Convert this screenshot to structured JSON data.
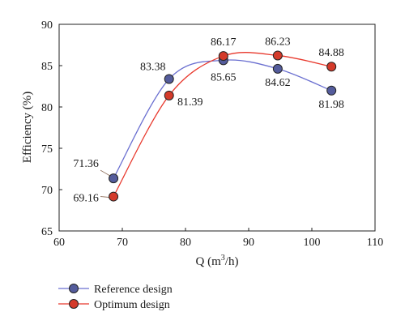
{
  "colors": {
    "reference": "#6a6fd0",
    "reference_marker": "#545c9c",
    "optimum": "#e8382c",
    "optimum_marker": "#d43a2a",
    "axis": "#222222",
    "leader": "#8a6a55"
  },
  "chart_data": {
    "type": "line",
    "title": "",
    "xlabel_main": "Q (m",
    "xlabel_sup": "3",
    "xlabel_tail": "/h)",
    "ylabel": "Efficiency (%)",
    "xlim": [
      60,
      110
    ],
    "ylim": [
      65,
      90
    ],
    "xticks": [
      60,
      70,
      80,
      90,
      100,
      110
    ],
    "yticks": [
      65,
      70,
      75,
      80,
      85,
      90
    ],
    "legend_position": "bottom-left",
    "series": [
      {
        "name": "Reference design",
        "x": [
          68.6,
          77.4,
          86.0,
          94.6,
          103.1
        ],
        "values": [
          71.36,
          83.38,
          85.65,
          84.62,
          81.98
        ],
        "labels": [
          "71.36",
          "83.38",
          "85.65",
          "84.62",
          "81.98"
        ]
      },
      {
        "name": "Optimum design",
        "x": [
          68.6,
          77.4,
          86.0,
          94.6,
          103.1
        ],
        "values": [
          69.16,
          81.39,
          86.17,
          86.23,
          84.88
        ],
        "labels": [
          "69.16",
          "81.39",
          "86.17",
          "86.23",
          "84.88"
        ]
      }
    ]
  }
}
